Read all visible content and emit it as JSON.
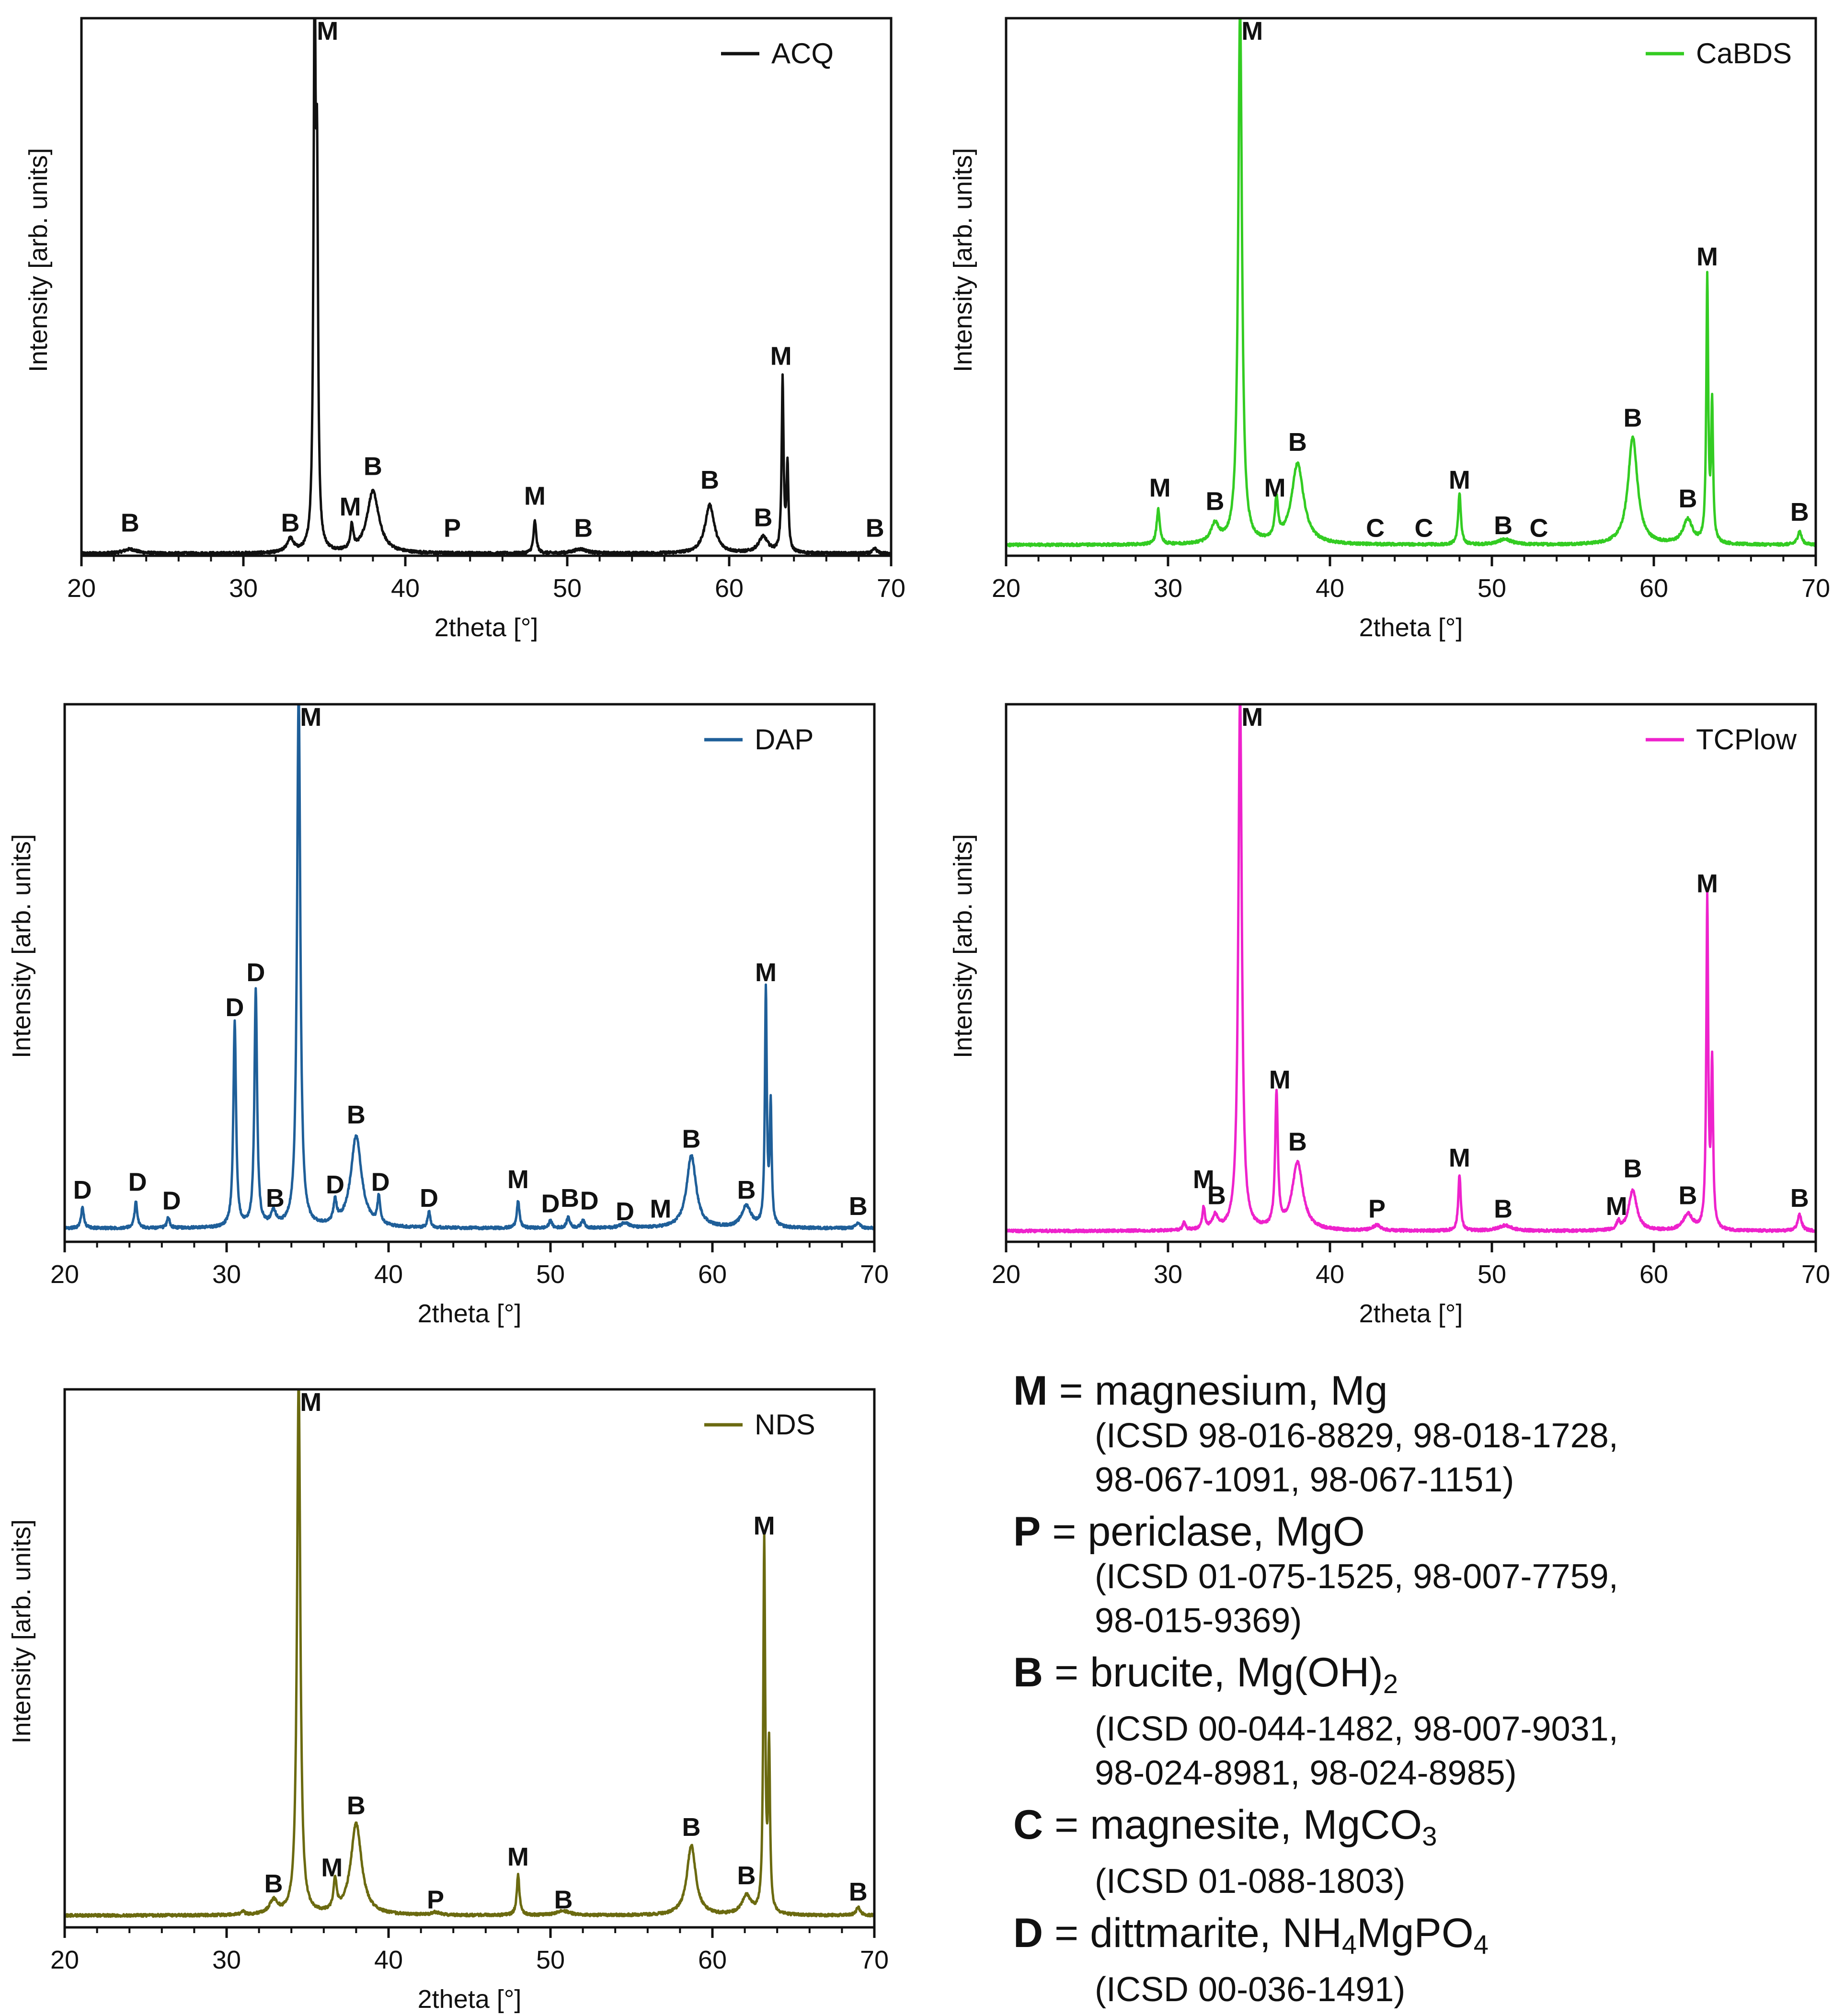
{
  "colors": {
    "ACQ": "#111111",
    "CaBDS": "#33cc22",
    "DAP": "#1f5f99",
    "TCPlow": "#ee22cc",
    "NDS": "#6b6a10"
  },
  "chart_data": [
    {
      "type": "line",
      "id": "acq",
      "series_name": "ACQ",
      "color": "#111111",
      "xlabel": "2theta [°]",
      "ylabel": "Intensity [arb. units]",
      "xlim": [
        20,
        70
      ],
      "ylim": [
        0,
        100
      ],
      "xticks": [
        "20",
        "30",
        "40",
        "50",
        "60",
        "70"
      ],
      "baseline": 0.4,
      "peaks": [
        {
          "x": 23.0,
          "h": 0.8,
          "w": 0.5
        },
        {
          "x": 32.9,
          "h": 2.5,
          "w": 0.25
        },
        {
          "x": 34.4,
          "h": 100,
          "w": 0.08
        },
        {
          "x": 34.55,
          "h": 60,
          "w": 0.07
        },
        {
          "x": 36.7,
          "h": 4.5,
          "w": 0.1
        },
        {
          "x": 38.0,
          "h": 11.5,
          "w": 0.45
        },
        {
          "x": 48.0,
          "h": 6,
          "w": 0.1
        },
        {
          "x": 50.8,
          "h": 0.8,
          "w": 0.5
        },
        {
          "x": 58.8,
          "h": 9,
          "w": 0.35
        },
        {
          "x": 62.1,
          "h": 3,
          "w": 0.35
        },
        {
          "x": 63.3,
          "h": 32,
          "w": 0.07
        },
        {
          "x": 63.6,
          "h": 16,
          "w": 0.07
        },
        {
          "x": 69.0,
          "h": 0.9,
          "w": 0.15
        }
      ],
      "labels": [
        {
          "text": "B",
          "x": 23.0,
          "y": 4.5
        },
        {
          "text": "B",
          "x": 32.9,
          "y": 4.5
        },
        {
          "text": "M",
          "x": 35.2,
          "y": 96
        },
        {
          "text": "M",
          "x": 36.6,
          "y": 7.5
        },
        {
          "text": "B",
          "x": 38.0,
          "y": 15
        },
        {
          "text": "P",
          "x": 42.9,
          "y": 3.5
        },
        {
          "text": "M",
          "x": 48.0,
          "y": 9.5
        },
        {
          "text": "B",
          "x": 51.0,
          "y": 3.5
        },
        {
          "text": "B",
          "x": 58.8,
          "y": 12.5
        },
        {
          "text": "B",
          "x": 62.1,
          "y": 5.5
        },
        {
          "text": "M",
          "x": 63.2,
          "y": 35.5
        },
        {
          "text": "B",
          "x": 69.0,
          "y": 3.5
        }
      ]
    },
    {
      "type": "line",
      "id": "cabds",
      "series_name": "CaBDS",
      "color": "#33cc22",
      "xlabel": "2theta [°]",
      "ylabel": "Intensity [arb. units]",
      "xlim": [
        20,
        70
      ],
      "ylim": [
        0,
        100
      ],
      "xticks": [
        "20",
        "30",
        "40",
        "50",
        "60",
        "70"
      ],
      "baseline": 2.0,
      "peaks": [
        {
          "x": 29.4,
          "h": 6.5,
          "w": 0.12
        },
        {
          "x": 32.9,
          "h": 3.5,
          "w": 0.3
        },
        {
          "x": 34.45,
          "h": 100,
          "w": 0.14
        },
        {
          "x": 36.7,
          "h": 7.5,
          "w": 0.12
        },
        {
          "x": 38.0,
          "h": 15,
          "w": 0.45
        },
        {
          "x": 48.0,
          "h": 9.5,
          "w": 0.1
        },
        {
          "x": 50.8,
          "h": 1,
          "w": 0.5
        },
        {
          "x": 58.7,
          "h": 20,
          "w": 0.35
        },
        {
          "x": 62.1,
          "h": 4.5,
          "w": 0.35
        },
        {
          "x": 63.3,
          "h": 49,
          "w": 0.07
        },
        {
          "x": 63.6,
          "h": 25,
          "w": 0.07
        },
        {
          "x": 69.0,
          "h": 2.5,
          "w": 0.15
        }
      ],
      "labels": [
        {
          "text": "M",
          "x": 29.5,
          "y": 11
        },
        {
          "text": "B",
          "x": 32.9,
          "y": 8.5
        },
        {
          "text": "M",
          "x": 35.2,
          "y": 96
        },
        {
          "text": "M",
          "x": 36.6,
          "y": 11
        },
        {
          "text": "B",
          "x": 38.0,
          "y": 19.5
        },
        {
          "text": "C",
          "x": 42.8,
          "y": 3.5
        },
        {
          "text": "C",
          "x": 45.8,
          "y": 3.5
        },
        {
          "text": "M",
          "x": 48.0,
          "y": 12.5
        },
        {
          "text": "B",
          "x": 50.7,
          "y": 4
        },
        {
          "text": "C",
          "x": 52.9,
          "y": 3.5
        },
        {
          "text": "B",
          "x": 58.7,
          "y": 24
        },
        {
          "text": "B",
          "x": 62.1,
          "y": 9
        },
        {
          "text": "M",
          "x": 63.3,
          "y": 54
        },
        {
          "text": "B",
          "x": 69.0,
          "y": 6.5
        }
      ]
    },
    {
      "type": "line",
      "id": "dap",
      "series_name": "DAP",
      "color": "#1f5f99",
      "xlabel": "2theta [°]",
      "ylabel": "Intensity [arb. units]",
      "xlim": [
        20,
        70
      ],
      "ylim": [
        0,
        100
      ],
      "xticks": [
        "20",
        "30",
        "40",
        "50",
        "60",
        "70"
      ],
      "baseline": 2.5,
      "peaks": [
        {
          "x": 21.1,
          "h": 4,
          "w": 0.1
        },
        {
          "x": 24.4,
          "h": 5,
          "w": 0.1
        },
        {
          "x": 26.4,
          "h": 2,
          "w": 0.1
        },
        {
          "x": 30.5,
          "h": 38,
          "w": 0.1
        },
        {
          "x": 31.8,
          "h": 44,
          "w": 0.1
        },
        {
          "x": 32.9,
          "h": 2.5,
          "w": 0.2
        },
        {
          "x": 34.45,
          "h": 100,
          "w": 0.12
        },
        {
          "x": 36.7,
          "h": 4,
          "w": 0.12
        },
        {
          "x": 38.0,
          "h": 17,
          "w": 0.4
        },
        {
          "x": 39.4,
          "h": 5,
          "w": 0.1
        },
        {
          "x": 42.5,
          "h": 3,
          "w": 0.1
        },
        {
          "x": 48.0,
          "h": 5,
          "w": 0.1
        },
        {
          "x": 50.0,
          "h": 1.5,
          "w": 0.1
        },
        {
          "x": 51.1,
          "h": 2,
          "w": 0.12
        },
        {
          "x": 52.0,
          "h": 1.5,
          "w": 0.12
        },
        {
          "x": 54.6,
          "h": 1,
          "w": 0.3
        },
        {
          "x": 58.7,
          "h": 13.5,
          "w": 0.35
        },
        {
          "x": 62.1,
          "h": 4,
          "w": 0.35
        },
        {
          "x": 63.3,
          "h": 44,
          "w": 0.07
        },
        {
          "x": 63.6,
          "h": 22,
          "w": 0.07
        },
        {
          "x": 69.0,
          "h": 1,
          "w": 0.15
        }
      ],
      "labels": [
        {
          "text": "D",
          "x": 21.1,
          "y": 8
        },
        {
          "text": "D",
          "x": 24.5,
          "y": 9.5
        },
        {
          "text": "D",
          "x": 26.6,
          "y": 6
        },
        {
          "text": "D",
          "x": 30.5,
          "y": 42
        },
        {
          "text": "D",
          "x": 31.8,
          "y": 48.5
        },
        {
          "text": "B",
          "x": 33.0,
          "y": 6.5
        },
        {
          "text": "M",
          "x": 35.2,
          "y": 96
        },
        {
          "text": "D",
          "x": 36.7,
          "y": 9
        },
        {
          "text": "B",
          "x": 38.0,
          "y": 22
        },
        {
          "text": "D",
          "x": 39.5,
          "y": 9.5
        },
        {
          "text": "D",
          "x": 42.5,
          "y": 6.5
        },
        {
          "text": "M",
          "x": 48.0,
          "y": 10
        },
        {
          "text": "D",
          "x": 50.0,
          "y": 5.5
        },
        {
          "text": "B",
          "x": 51.2,
          "y": 6.5
        },
        {
          "text": "D",
          "x": 52.4,
          "y": 6
        },
        {
          "text": "D",
          "x": 54.6,
          "y": 4
        },
        {
          "text": "M",
          "x": 56.8,
          "y": 4.5
        },
        {
          "text": "B",
          "x": 58.7,
          "y": 17.5
        },
        {
          "text": "B",
          "x": 62.1,
          "y": 8
        },
        {
          "text": "M",
          "x": 63.3,
          "y": 48.5
        },
        {
          "text": "B",
          "x": 69.0,
          "y": 5
        }
      ]
    },
    {
      "type": "line",
      "id": "tcplow",
      "series_name": "TCPlow",
      "color": "#ee22cc",
      "xlabel": "2theta [°]",
      "ylabel": "Intensity [arb. units]",
      "xlim": [
        20,
        70
      ],
      "ylim": [
        0,
        100
      ],
      "xticks": [
        "20",
        "30",
        "40",
        "50",
        "60",
        "70"
      ],
      "baseline": 2.0,
      "peaks": [
        {
          "x": 31.0,
          "h": 1.5,
          "w": 0.1
        },
        {
          "x": 32.2,
          "h": 4,
          "w": 0.1
        },
        {
          "x": 32.9,
          "h": 2.5,
          "w": 0.2
        },
        {
          "x": 34.45,
          "h": 100,
          "w": 0.13
        },
        {
          "x": 36.7,
          "h": 25,
          "w": 0.1
        },
        {
          "x": 38.0,
          "h": 12.5,
          "w": 0.4
        },
        {
          "x": 42.9,
          "h": 1,
          "w": 0.3
        },
        {
          "x": 48.0,
          "h": 10.5,
          "w": 0.09
        },
        {
          "x": 50.8,
          "h": 1,
          "w": 0.5
        },
        {
          "x": 57.8,
          "h": 1.5,
          "w": 0.1
        },
        {
          "x": 58.7,
          "h": 7.5,
          "w": 0.3
        },
        {
          "x": 62.1,
          "h": 3,
          "w": 0.35
        },
        {
          "x": 63.3,
          "h": 61,
          "w": 0.07
        },
        {
          "x": 63.6,
          "h": 30,
          "w": 0.07
        },
        {
          "x": 69.0,
          "h": 3,
          "w": 0.15
        }
      ],
      "labels": [
        {
          "text": "M",
          "x": 32.2,
          "y": 10
        },
        {
          "text": "B",
          "x": 33.0,
          "y": 7
        },
        {
          "text": "M",
          "x": 35.2,
          "y": 96
        },
        {
          "text": "M",
          "x": 36.9,
          "y": 28.5
        },
        {
          "text": "B",
          "x": 38.0,
          "y": 17
        },
        {
          "text": "P",
          "x": 42.9,
          "y": 4.5
        },
        {
          "text": "M",
          "x": 48.0,
          "y": 14
        },
        {
          "text": "B",
          "x": 50.7,
          "y": 4.5
        },
        {
          "text": "M",
          "x": 57.7,
          "y": 5
        },
        {
          "text": "B",
          "x": 58.7,
          "y": 12
        },
        {
          "text": "B",
          "x": 62.1,
          "y": 7
        },
        {
          "text": "M",
          "x": 63.3,
          "y": 65
        },
        {
          "text": "B",
          "x": 69.0,
          "y": 6.5
        }
      ]
    },
    {
      "type": "line",
      "id": "nds",
      "series_name": "NDS",
      "color": "#6b6a10",
      "xlabel": "2theta [°]",
      "ylabel": "Intensity [arb. units]",
      "xlim": [
        20,
        70
      ],
      "ylim": [
        0,
        100
      ],
      "xticks": [
        "20",
        "30",
        "40",
        "50",
        "60",
        "70"
      ],
      "baseline": 2.2,
      "peaks": [
        {
          "x": 31.0,
          "h": 0.8,
          "w": 0.1
        },
        {
          "x": 32.9,
          "h": 2.5,
          "w": 0.3
        },
        {
          "x": 34.45,
          "h": 100,
          "w": 0.12
        },
        {
          "x": 36.7,
          "h": 5.5,
          "w": 0.12
        },
        {
          "x": 38.0,
          "h": 17,
          "w": 0.4
        },
        {
          "x": 42.9,
          "h": 0.5,
          "w": 0.3
        },
        {
          "x": 48.0,
          "h": 7.5,
          "w": 0.1
        },
        {
          "x": 50.8,
          "h": 0.8,
          "w": 0.5
        },
        {
          "x": 58.7,
          "h": 13,
          "w": 0.33
        },
        {
          "x": 62.1,
          "h": 3.5,
          "w": 0.35
        },
        {
          "x": 63.2,
          "h": 69,
          "w": 0.07
        },
        {
          "x": 63.5,
          "h": 30,
          "w": 0.07
        },
        {
          "x": 69.0,
          "h": 1.5,
          "w": 0.15
        }
      ],
      "labels": [
        {
          "text": "B",
          "x": 32.9,
          "y": 6.5
        },
        {
          "text": "M",
          "x": 35.2,
          "y": 96
        },
        {
          "text": "M",
          "x": 36.5,
          "y": 9.5
        },
        {
          "text": "B",
          "x": 38.0,
          "y": 21
        },
        {
          "text": "P",
          "x": 42.9,
          "y": 3.5
        },
        {
          "text": "M",
          "x": 48.0,
          "y": 11.5
        },
        {
          "text": "B",
          "x": 50.8,
          "y": 3.5
        },
        {
          "text": "B",
          "x": 58.7,
          "y": 17
        },
        {
          "text": "B",
          "x": 62.1,
          "y": 8
        },
        {
          "text": "M",
          "x": 63.2,
          "y": 73
        },
        {
          "text": "B",
          "x": 69.0,
          "y": 5
        }
      ]
    }
  ],
  "phase_legend": [
    {
      "symbol": "M",
      "name": "magnesium, Mg",
      "refs": [
        "(ICSD 98-016-8829, 98-018-1728,",
        " 98-067-1091, 98-067-1151)"
      ]
    },
    {
      "symbol": "P",
      "name": "periclase, MgO",
      "refs": [
        "(ICSD 01-075-1525, 98-007-7759,",
        " 98-015-9369)"
      ]
    },
    {
      "symbol": "B",
      "name_main": "brucite, Mg(OH)",
      "name_sub": "2",
      "name_tail": "",
      "refs": [
        "(ICSD 00-044-1482, 98-007-9031,",
        " 98-024-8981, 98-024-8985)"
      ]
    },
    {
      "symbol": "C",
      "name_main": "magnesite, MgCO",
      "name_sub": "3",
      "name_tail": "",
      "refs": [
        "(ICSD 01-088-1803)"
      ]
    },
    {
      "symbol": "D",
      "name_main": "dittmarite, NH",
      "name_sub": "4",
      "name_tail": "MgPO",
      "name_sub2": "4",
      "refs": [
        "(ICSD 00-036-1491)"
      ]
    }
  ],
  "equals": "="
}
